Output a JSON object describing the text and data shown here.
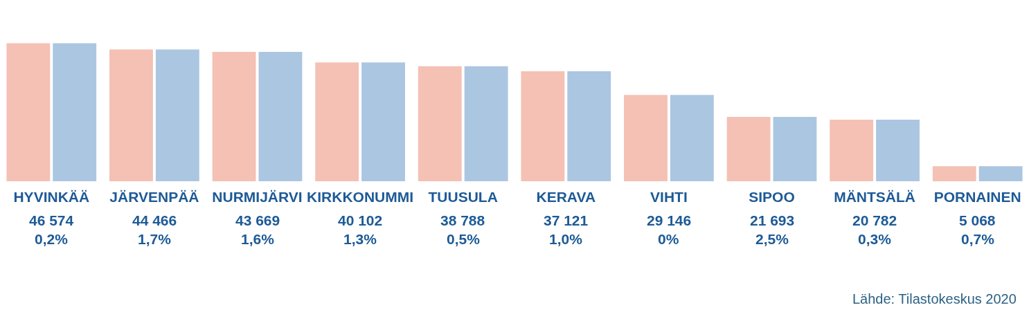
{
  "chart_data": {
    "type": "bar",
    "categories": [
      "HYVINKÄÄ",
      "JÄRVENPÄÄ",
      "NURMIJÄRVI",
      "KIRKKONUMMI",
      "TUUSULA",
      "KERAVA",
      "VIHTI",
      "SIPOO",
      "MÄNTSÄLÄ",
      "PORNAINEN"
    ],
    "series": [
      {
        "color": "#f4c1b4",
        "values": [
          46574,
          44466,
          43669,
          40102,
          38788,
          37121,
          29146,
          21693,
          20782,
          5068
        ],
        "value_labels": [
          "46 574",
          "44 466",
          "43 669",
          "40 102",
          "38 788",
          "37 121",
          "29 146",
          "21 693",
          "20 782",
          "5 068"
        ]
      },
      {
        "color": "#abc6e1",
        "values": [
          46574,
          44466,
          43669,
          40102,
          38788,
          37121,
          29146,
          21693,
          20782,
          5068
        ]
      }
    ],
    "annotations": [
      "0,2%",
      "1,7%",
      "1,6%",
      "1,3%",
      "0,5%",
      "1,0%",
      "0%",
      "2,5%",
      "0,3%",
      "0,7%",
      "Lähde: Tilastokeskus 2020"
    ],
    "tick_labels": "x"
  }
}
